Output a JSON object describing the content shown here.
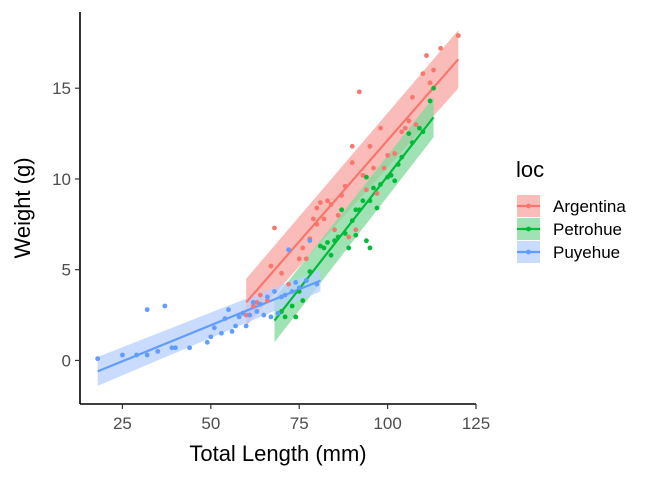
{
  "chart_data": {
    "type": "scatter",
    "title": "",
    "xlabel": "Total Length (mm)",
    "ylabel": "Weight (g)",
    "xlim": [
      13,
      125
    ],
    "ylim": [
      -2.4,
      19.2
    ],
    "xticks": [
      25,
      50,
      75,
      100,
      125
    ],
    "yticks": [
      0,
      5,
      10,
      15
    ],
    "grid": false,
    "legend": {
      "title": "loc",
      "position": "right"
    },
    "overlays": [
      "linear fit line per series",
      "confidence band per series"
    ],
    "series": [
      {
        "name": "Argentina",
        "color": "#F8766D",
        "band_color": "#F8A6A0",
        "fit": {
          "x": [
            60,
            120
          ],
          "y": [
            3.2,
            16.6
          ],
          "band_halfwidth": [
            1.3,
            1.6
          ]
        },
        "points": [
          [
            60,
            2.5
          ],
          [
            62,
            3.0
          ],
          [
            63,
            3.2
          ],
          [
            64,
            3.6
          ],
          [
            66,
            3.3
          ],
          [
            67,
            5.2
          ],
          [
            68,
            7.3
          ],
          [
            70,
            4.8
          ],
          [
            72,
            4.2
          ],
          [
            75,
            5.6
          ],
          [
            76,
            6.2
          ],
          [
            77,
            5.6
          ],
          [
            78,
            6.7
          ],
          [
            79,
            7.8
          ],
          [
            80,
            7.5
          ],
          [
            80,
            8.4
          ],
          [
            81,
            8.7
          ],
          [
            82,
            7.8
          ],
          [
            83,
            8.8
          ],
          [
            84,
            8.6
          ],
          [
            85,
            7.2
          ],
          [
            86,
            8.0
          ],
          [
            87,
            9.1
          ],
          [
            88,
            9.6
          ],
          [
            89,
            6.8
          ],
          [
            90,
            11.8
          ],
          [
            90,
            10.9
          ],
          [
            91,
            7.2
          ],
          [
            92,
            14.8
          ],
          [
            93,
            10.2
          ],
          [
            94,
            9.4
          ],
          [
            95,
            11.8
          ],
          [
            96,
            10.6
          ],
          [
            97,
            9.2
          ],
          [
            98,
            12.8
          ],
          [
            99,
            10.6
          ],
          [
            100,
            11.3
          ],
          [
            102,
            11.4
          ],
          [
            104,
            12.6
          ],
          [
            105,
            12.8
          ],
          [
            106,
            13.2
          ],
          [
            107,
            14.5
          ],
          [
            108,
            13.0
          ],
          [
            110,
            15.8
          ],
          [
            111,
            16.8
          ],
          [
            112,
            15.3
          ],
          [
            113,
            16.0
          ],
          [
            115,
            17.2
          ],
          [
            120,
            17.9
          ]
        ]
      },
      {
        "name": "Petrohue",
        "color": "#00BA38",
        "band_color": "#7FD99C",
        "fit": {
          "x": [
            68,
            113
          ],
          "y": [
            2.2,
            13.4
          ],
          "band_halfwidth": [
            1.2,
            1.1
          ]
        },
        "points": [
          [
            70,
            2.7
          ],
          [
            71,
            2.4
          ],
          [
            73,
            3.0
          ],
          [
            74,
            2.4
          ],
          [
            75,
            3.8
          ],
          [
            76,
            3.3
          ],
          [
            77,
            4.4
          ],
          [
            78,
            4.9
          ],
          [
            81,
            6.3
          ],
          [
            82,
            6.2
          ],
          [
            83,
            6.5
          ],
          [
            84,
            5.8
          ],
          [
            85,
            6.6
          ],
          [
            86,
            6.8
          ],
          [
            87,
            8.3
          ],
          [
            88,
            7.0
          ],
          [
            89,
            6.2
          ],
          [
            90,
            7.7
          ],
          [
            91,
            6.9
          ],
          [
            91,
            8.3
          ],
          [
            92,
            8.3
          ],
          [
            93,
            8.8
          ],
          [
            94,
            10.1
          ],
          [
            94,
            6.6
          ],
          [
            95,
            6.2
          ],
          [
            95,
            8.8
          ],
          [
            96,
            9.5
          ],
          [
            97,
            8.4
          ],
          [
            98,
            9.7
          ],
          [
            100,
            10.1
          ],
          [
            101,
            10.2
          ],
          [
            102,
            9.9
          ],
          [
            103,
            10.8
          ],
          [
            104,
            11.2
          ],
          [
            106,
            12.5
          ],
          [
            107,
            12.0
          ],
          [
            109,
            12.8
          ],
          [
            110,
            12.6
          ],
          [
            112,
            14.3
          ],
          [
            113,
            15.0
          ]
        ]
      },
      {
        "name": "Puyehue",
        "color": "#619CFF",
        "band_color": "#B7D0FF",
        "fit": {
          "x": [
            18,
            81
          ],
          "y": [
            -0.6,
            4.4
          ],
          "band_halfwidth": [
            0.8,
            0.6
          ]
        },
        "points": [
          [
            18,
            0.1
          ],
          [
            25,
            0.3
          ],
          [
            29,
            0.3
          ],
          [
            32,
            0.3
          ],
          [
            32,
            2.8
          ],
          [
            35,
            0.5
          ],
          [
            37,
            3.0
          ],
          [
            39,
            0.7
          ],
          [
            40,
            0.7
          ],
          [
            44,
            0.7
          ],
          [
            49,
            1.0
          ],
          [
            50,
            1.3
          ],
          [
            51,
            1.8
          ],
          [
            53,
            1.5
          ],
          [
            54,
            2.3
          ],
          [
            55,
            2.8
          ],
          [
            56,
            1.6
          ],
          [
            57,
            1.9
          ],
          [
            58,
            2.4
          ],
          [
            59,
            2.6
          ],
          [
            60,
            1.9
          ],
          [
            61,
            2.5
          ],
          [
            62,
            3.2
          ],
          [
            63,
            2.7
          ],
          [
            64,
            3.1
          ],
          [
            65,
            2.5
          ],
          [
            66,
            3.5
          ],
          [
            67,
            2.4
          ],
          [
            68,
            3.8
          ],
          [
            69,
            2.6
          ],
          [
            70,
            3.5
          ],
          [
            71,
            3.6
          ],
          [
            72,
            6.1
          ],
          [
            73,
            3.8
          ],
          [
            74,
            4.3
          ],
          [
            75,
            4.0
          ],
          [
            77,
            4.4
          ],
          [
            78,
            6.6
          ],
          [
            80,
            4.2
          ]
        ]
      }
    ]
  }
}
